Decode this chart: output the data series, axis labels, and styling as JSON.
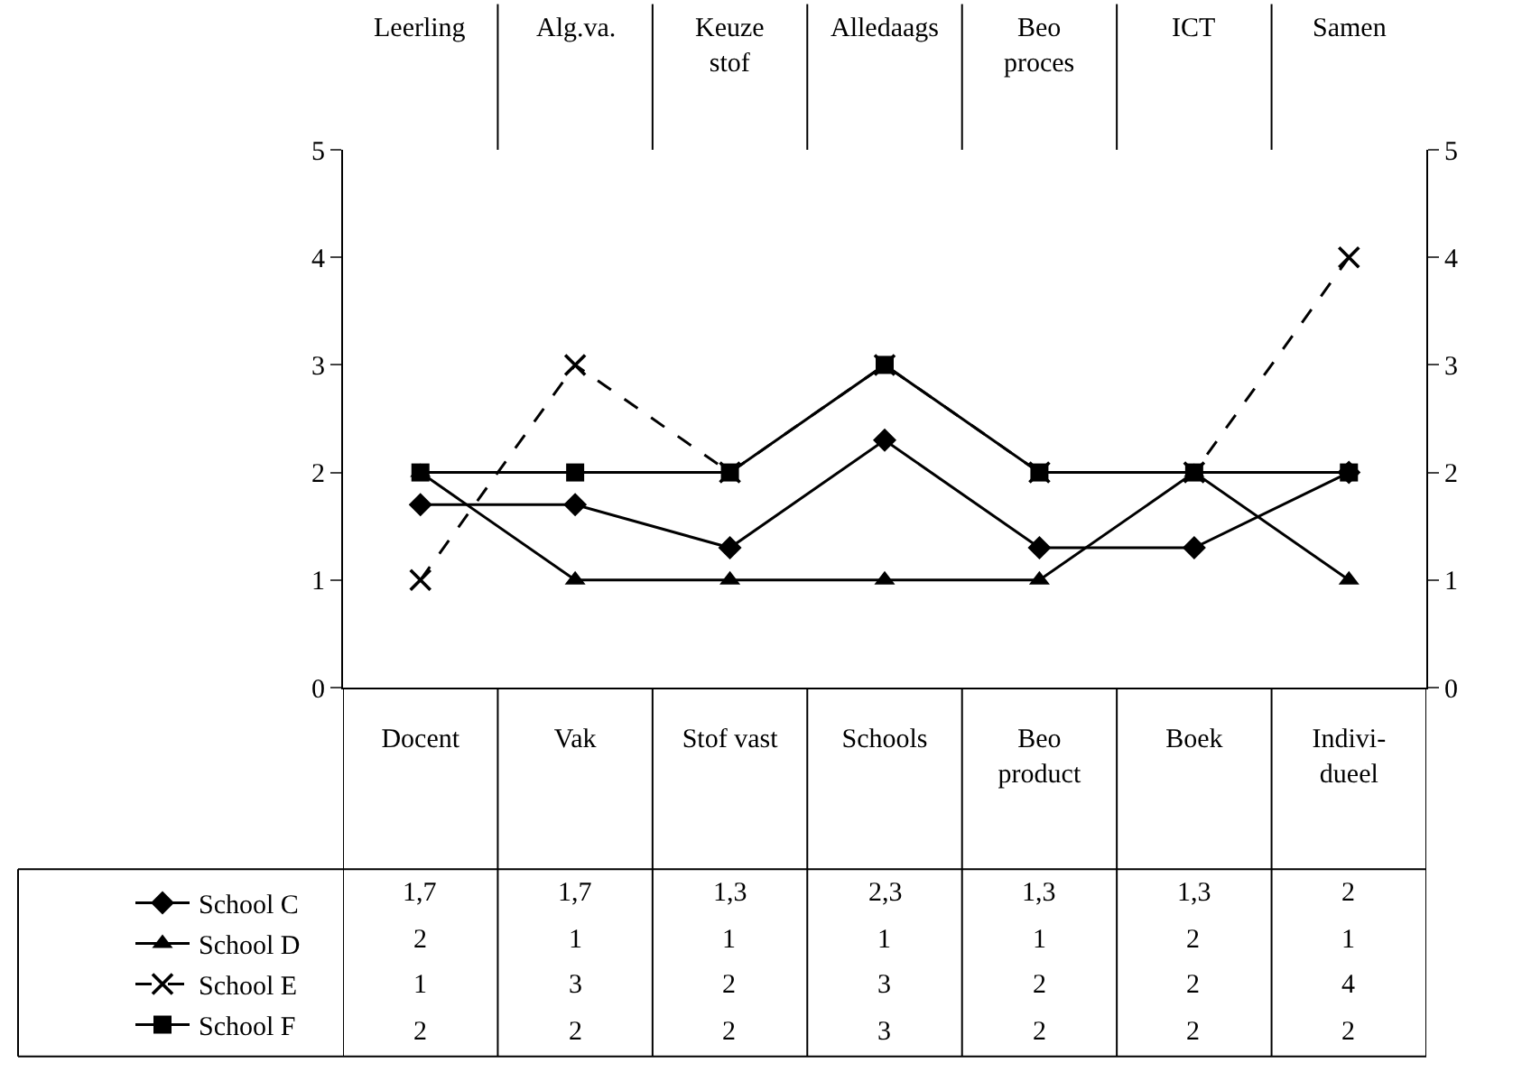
{
  "chart_data": {
    "type": "line",
    "categories": [
      "Docent",
      "Vak",
      "Stof vast",
      "Schools",
      "Beo product",
      "Boek",
      "Indivi-dueel"
    ],
    "annotations": [
      "Leerling",
      "Alg.va.",
      "Keuze stof",
      "Alledaags",
      "Beo proces",
      "ICT",
      "Samen"
    ],
    "ylim": [
      0,
      5
    ],
    "yticks": [
      0,
      1,
      2,
      3,
      4,
      5
    ],
    "y2lim": [
      0,
      5
    ],
    "y2ticks": [
      0,
      1,
      2,
      3,
      4,
      5
    ],
    "legend": "bottom left",
    "series": [
      {
        "name": "School C",
        "color": "#000000",
        "marker": "diamond",
        "line_style": "solid",
        "values": [
          1.7,
          1.7,
          1.3,
          2.3,
          1.3,
          1.3,
          2
        ],
        "value_labels": [
          "1,7",
          "1,7",
          "1,3",
          "2,3",
          "1,3",
          "1,3",
          "2"
        ]
      },
      {
        "name": "School D",
        "color": "#000000",
        "marker": "triangle",
        "line_style": "solid",
        "values": [
          2,
          1,
          1,
          1,
          1,
          2,
          1
        ],
        "value_labels": [
          "2",
          "1",
          "1",
          "1",
          "1",
          "2",
          "1"
        ]
      },
      {
        "name": "School E",
        "color": "#000000",
        "marker": "cross",
        "line_style": "dashed",
        "values": [
          1,
          3,
          2,
          3,
          2,
          2,
          4
        ],
        "value_labels": [
          "1",
          "3",
          "2",
          "3",
          "2",
          "2",
          "4"
        ]
      },
      {
        "name": "School F",
        "color": "#000000",
        "marker": "square",
        "line_style": "solid",
        "values": [
          2,
          2,
          2,
          3,
          2,
          2,
          2
        ],
        "value_labels": [
          "2",
          "2",
          "2",
          "3",
          "2",
          "2",
          "2"
        ]
      }
    ]
  }
}
